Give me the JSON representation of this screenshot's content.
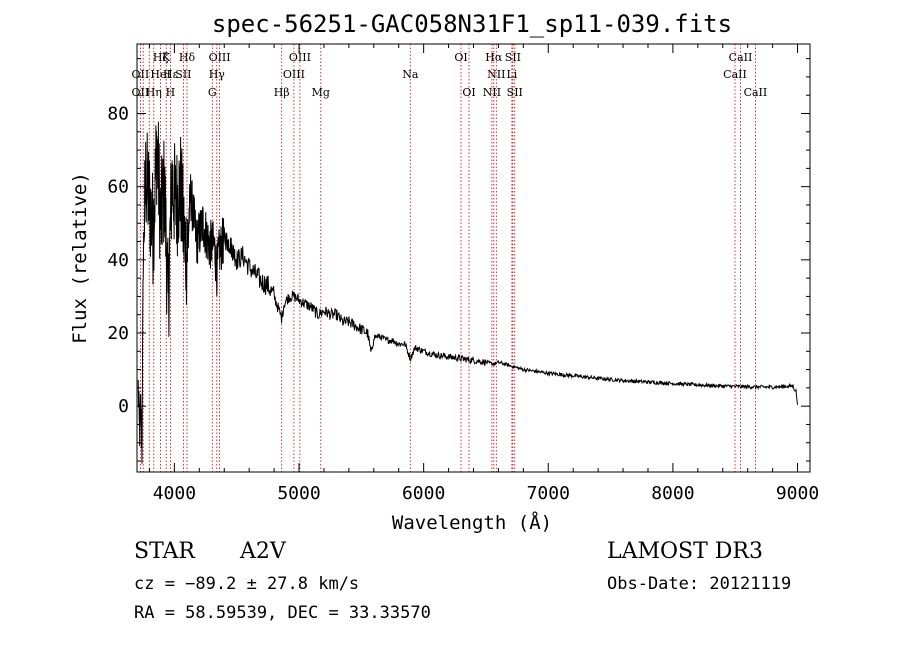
{
  "chart_data": {
    "type": "line",
    "title": "spec-56251-GAC058N31F1_sp11-039.fits",
    "xlabel": "Wavelength (Å)",
    "ylabel": "Flux (relative)",
    "xlim": [
      3700,
      9100
    ],
    "ylim": [
      -18,
      99
    ],
    "xticks": [
      4000,
      5000,
      6000,
      7000,
      8000,
      9000
    ],
    "xtick_labels": [
      "4000",
      "5000",
      "6000",
      "7000",
      "8000",
      "9000"
    ],
    "yticks": [
      0,
      20,
      40,
      60,
      80
    ],
    "ytick_labels": [
      "0",
      "20",
      "40",
      "60",
      "80"
    ],
    "grid": false,
    "spectrum_envelope": {
      "x": [
        3710,
        3720,
        3730,
        3740,
        3750,
        3770,
        3800,
        3830,
        3860,
        3890,
        3920,
        3950,
        3980,
        4010,
        4050,
        4080,
        4101,
        4130,
        4180,
        4230,
        4280,
        4320,
        4340,
        4360,
        4400,
        4450,
        4500,
        4550,
        4600,
        4650,
        4700,
        4750,
        4800,
        4850,
        4861,
        4880,
        4920,
        4960,
        5000,
        5050,
        5100,
        5150,
        5200,
        5260,
        5300,
        5350,
        5400,
        5450,
        5500,
        5550,
        5580,
        5600,
        5650,
        5700,
        5750,
        5800,
        5850,
        5893,
        5930,
        6000,
        6100,
        6200,
        6300,
        6400,
        6500,
        6563,
        6600,
        6700,
        6800,
        6900,
        7000,
        7200,
        7400,
        7600,
        7800,
        8000,
        8200,
        8400,
        8600,
        8800,
        8960,
        8990,
        9000
      ],
      "y": [
        5,
        -8,
        0,
        -12,
        40,
        62,
        56,
        48,
        72,
        50,
        60,
        28,
        62,
        55,
        60,
        45,
        42,
        58,
        45,
        50,
        44,
        44,
        37,
        42,
        46,
        44,
        40,
        41,
        38,
        36,
        34,
        33,
        30,
        25,
        24,
        28,
        30,
        30,
        29,
        28,
        27,
        25,
        26,
        25,
        25,
        23,
        23,
        22,
        21,
        20,
        14,
        19,
        19,
        18,
        18,
        17,
        17,
        13,
        16,
        15,
        14,
        13.5,
        13,
        12.5,
        12,
        11.5,
        12,
        11,
        10,
        9.5,
        9,
        8.3,
        7.6,
        7,
        6.6,
        6.2,
        5.8,
        5.5,
        5.3,
        5.2,
        5.5,
        4,
        0
      ]
    },
    "spectral_lines": [
      {
        "label": "Hζ",
        "wavelength": 3889,
        "row": 1
      },
      {
        "label": "K",
        "wavelength": 3934,
        "row": 1
      },
      {
        "label": "Hδ",
        "wavelength": 4101,
        "row": 1
      },
      {
        "label": "OIII",
        "wavelength": 4363,
        "row": 1
      },
      {
        "label": "OIII",
        "wavelength": 5007,
        "row": 1
      },
      {
        "label": "OI",
        "wavelength": 6300,
        "row": 1
      },
      {
        "label": "Hα",
        "wavelength": 6563,
        "row": 1
      },
      {
        "label": "SII",
        "wavelength": 6716,
        "row": 1
      },
      {
        "label": "CaII",
        "wavelength": 8542,
        "row": 1
      },
      {
        "label": "OII",
        "wavelength": 3727,
        "row": 2
      },
      {
        "label": "Hε",
        "wavelength": 3970,
        "row": 2
      },
      {
        "label": "HeI",
        "wavelength": 3889,
        "row": 2
      },
      {
        "label": "SII",
        "wavelength": 4072,
        "row": 2
      },
      {
        "label": "Hγ",
        "wavelength": 4340,
        "row": 2
      },
      {
        "label": "OIII",
        "wavelength": 4959,
        "row": 2
      },
      {
        "label": "Na",
        "wavelength": 5893,
        "row": 2
      },
      {
        "label": "NII",
        "wavelength": 6583,
        "row": 2
      },
      {
        "label": "Li",
        "wavelength": 6708,
        "row": 2
      },
      {
        "label": "CaII",
        "wavelength": 8498,
        "row": 2
      },
      {
        "label": "OII",
        "wavelength": 3727,
        "row": 3
      },
      {
        "label": "Hη",
        "wavelength": 3835,
        "row": 3
      },
      {
        "label": "H",
        "wavelength": 3968,
        "row": 3
      },
      {
        "label": "G",
        "wavelength": 4304,
        "row": 3
      },
      {
        "label": "Hβ",
        "wavelength": 4861,
        "row": 3
      },
      {
        "label": "Mg",
        "wavelength": 5175,
        "row": 3
      },
      {
        "label": "OI",
        "wavelength": 6364,
        "row": 3
      },
      {
        "label": "NII",
        "wavelength": 6548,
        "row": 3
      },
      {
        "label": "SII",
        "wavelength": 6731,
        "row": 3
      },
      {
        "label": "CaII",
        "wavelength": 8662,
        "row": 3
      }
    ],
    "line_marker_wavelengths": [
      3727,
      3750,
      3798,
      3835,
      3889,
      3934,
      3968,
      4072,
      4101,
      4304,
      4340,
      4363,
      4861,
      4959,
      5007,
      5175,
      5893,
      6300,
      6364,
      6548,
      6563,
      6583,
      6708,
      6716,
      6731,
      8498,
      8542,
      8662
    ]
  },
  "info": {
    "object_type": "STAR",
    "subclass": "A2V",
    "survey": "LAMOST DR3",
    "cz": "cz = −89.2 ± 27.8 km/s",
    "obs_date": "Obs-Date: 20121119",
    "coords": "RA =  58.59539, DEC =  33.33570"
  },
  "colors": {
    "spectrum": "#000000",
    "line_markers": "#cc0000",
    "axes": "#000000"
  }
}
